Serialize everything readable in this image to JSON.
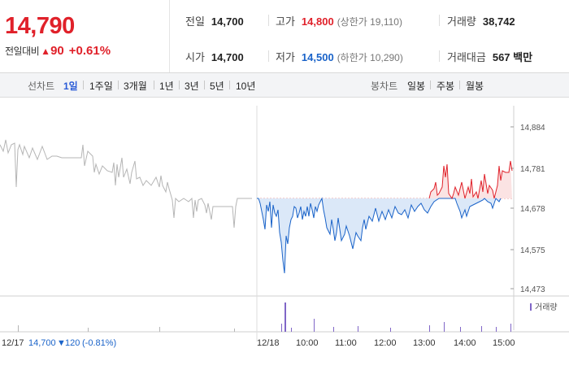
{
  "summary": {
    "price": "14,790",
    "change_label": "전일대비",
    "change_arrow": "▲",
    "change_value": "90",
    "change_pct": "+0.61%",
    "prev_close": {
      "label": "전일",
      "value": "14,700"
    },
    "open": {
      "label": "시가",
      "value": "14,700"
    },
    "high": {
      "label": "고가",
      "value": "14,800",
      "sub": "(상한가 19,110)"
    },
    "low": {
      "label": "저가",
      "value": "14,500",
      "sub": "(하한가 10,290)"
    },
    "volume": {
      "label": "거래량",
      "value": "38,742"
    },
    "amount": {
      "label": "거래대금",
      "value": "567 백만"
    }
  },
  "toolbar": {
    "line_label": "선차트",
    "line_tabs": [
      "1일",
      "1주일",
      "3개월",
      "1년",
      "3년",
      "5년",
      "10년"
    ],
    "active_tab": "1일",
    "candle_label": "봉차트",
    "candle_tabs": [
      "일봉",
      "주봉",
      "월봉"
    ]
  },
  "chart": {
    "y_ticks": [
      "14,884",
      "14,781",
      "14,678",
      "14,575",
      "14,473"
    ],
    "volume_legend": "거래량",
    "prev_day_info": {
      "date": "12/17",
      "price": "14,700",
      "arrow": "▼",
      "change": "120",
      "pct": "(-0.81%)"
    },
    "x_labels": [
      "12/18",
      "10:00",
      "11:00",
      "12:00",
      "13:00",
      "14:00",
      "15:00"
    ],
    "colors": {
      "up": "#e0212a",
      "down": "#1a63c9",
      "prev": "#b5b5b5",
      "fill_down": "#dbe8f8",
      "fill_up": "#fbe3e3",
      "volume": "#8066c7"
    }
  }
}
